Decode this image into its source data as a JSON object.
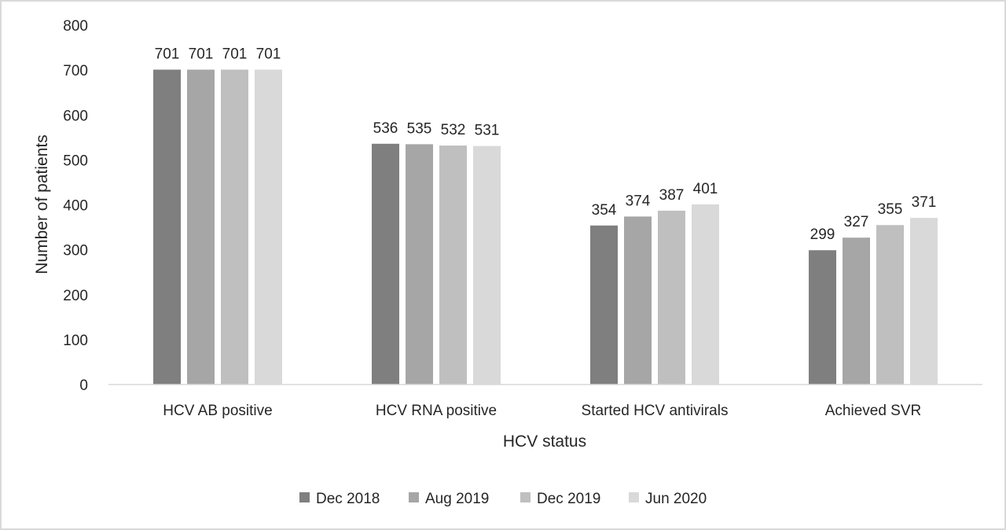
{
  "chart_data": {
    "type": "bar",
    "title": "",
    "xlabel": "HCV status",
    "ylabel": "Number of patients",
    "ylim": [
      0,
      800
    ],
    "yticks": [
      0,
      100,
      200,
      300,
      400,
      500,
      600,
      700,
      800
    ],
    "grid": false,
    "legend_position": "bottom",
    "data_labels": true,
    "categories": [
      "HCV AB positive",
      "HCV RNA positive",
      "Started HCV antivirals",
      "Achieved SVR"
    ],
    "series": [
      {
        "name": "Dec 2018",
        "color": "#7f7f7f",
        "values": [
          701,
          536,
          354,
          299
        ]
      },
      {
        "name": "Aug 2019",
        "color": "#a6a6a6",
        "values": [
          701,
          535,
          374,
          327
        ]
      },
      {
        "name": "Dec 2019",
        "color": "#bfbfbf",
        "values": [
          701,
          532,
          387,
          355
        ]
      },
      {
        "name": "Jun 2020",
        "color": "#d9d9d9",
        "values": [
          701,
          531,
          401,
          371
        ]
      }
    ]
  }
}
